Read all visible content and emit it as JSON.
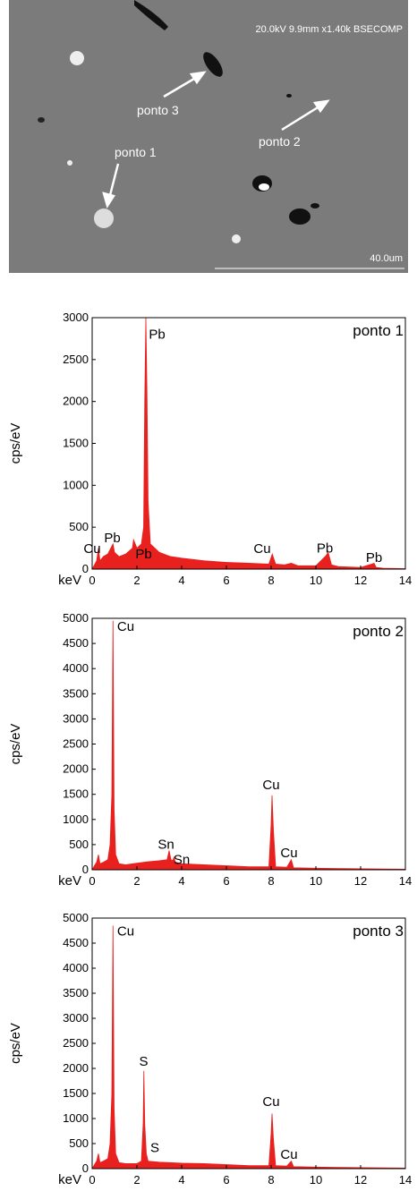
{
  "image": {
    "info": "20.0kV 9.9mm x1.40k BSECOMP",
    "scale_label": "40.0um",
    "labels": [
      "ponto 3",
      "ponto 2",
      "ponto 1"
    ]
  },
  "chart_data": [
    {
      "type": "area",
      "title": "ponto 1",
      "x_label": "keV",
      "y_label": "cps/eV",
      "color": "#e8201e",
      "x": [
        0,
        0.1,
        0.2,
        0.28,
        0.35,
        0.5,
        0.7,
        0.93,
        1.0,
        1.2,
        1.5,
        1.8,
        1.85,
        2.0,
        2.2,
        2.3,
        2.35,
        2.4,
        2.45,
        2.5,
        2.6,
        2.8,
        3.0,
        3.5,
        4,
        5,
        6,
        7,
        7.9,
        8.05,
        8.2,
        8.6,
        8.9,
        9.2,
        10,
        10.45,
        10.55,
        10.7,
        11,
        12,
        12.5,
        12.6,
        12.7,
        13,
        14
      ],
      "values": [
        0,
        50,
        100,
        250,
        100,
        150,
        180,
        300,
        200,
        150,
        180,
        250,
        350,
        250,
        300,
        500,
        2000,
        3000,
        2100,
        800,
        300,
        250,
        200,
        150,
        130,
        100,
        80,
        70,
        60,
        180,
        60,
        50,
        70,
        40,
        40,
        160,
        200,
        50,
        30,
        20,
        60,
        70,
        20,
        10,
        5
      ],
      "xlim": [
        0,
        14
      ],
      "xticks": [
        0,
        2,
        4,
        6,
        8,
        10,
        12,
        14
      ],
      "ylim": [
        0,
        3000
      ],
      "yticks": [
        0,
        500,
        1000,
        1500,
        2000,
        2500,
        3000
      ],
      "annotations": [
        {
          "text": "Cu",
          "x": 0,
          "y": 190
        },
        {
          "text": "Pb",
          "x": 0.9,
          "y": 320
        },
        {
          "text": "Pb",
          "x": 2.9,
          "y": 2750
        },
        {
          "text": "Pb",
          "x": 2.3,
          "y": 130
        },
        {
          "text": "Cu",
          "x": 7.6,
          "y": 190
        },
        {
          "text": "Pb",
          "x": 10.4,
          "y": 200
        },
        {
          "text": "Pb",
          "x": 12.6,
          "y": 85
        }
      ]
    },
    {
      "type": "area",
      "title": "ponto 2",
      "x_label": "keV",
      "y_label": "cps/eV",
      "color": "#e8201e",
      "x": [
        0,
        0.1,
        0.2,
        0.28,
        0.35,
        0.5,
        0.7,
        0.8,
        0.88,
        0.93,
        0.98,
        1.05,
        1.2,
        1.5,
        2,
        2.5,
        3,
        3.35,
        3.44,
        3.52,
        3.6,
        3.66,
        3.72,
        4,
        5,
        6,
        7,
        7.9,
        8.0,
        8.04,
        8.1,
        8.2,
        8.7,
        8.9,
        9.0,
        10,
        11,
        12,
        13,
        14
      ],
      "values": [
        0,
        80,
        150,
        300,
        120,
        150,
        200,
        500,
        1500,
        4950,
        1200,
        300,
        120,
        100,
        130,
        160,
        180,
        200,
        380,
        200,
        180,
        250,
        150,
        120,
        100,
        80,
        60,
        60,
        900,
        1480,
        800,
        60,
        50,
        200,
        40,
        30,
        25,
        20,
        15,
        10
      ],
      "xlim": [
        0,
        14
      ],
      "xticks": [
        0,
        2,
        4,
        6,
        8,
        10,
        12,
        14
      ],
      "ylim": [
        0,
        5000
      ],
      "yticks": [
        0,
        500,
        1000,
        1500,
        2000,
        2500,
        3000,
        3500,
        4000,
        4500,
        5000
      ],
      "annotations": [
        {
          "text": "Cu",
          "x": 1.5,
          "y": 4750
        },
        {
          "text": "Sn",
          "x": 3.3,
          "y": 420
        },
        {
          "text": "Sn",
          "x": 4.0,
          "y": 120
        },
        {
          "text": "Cu",
          "x": 8.0,
          "y": 1600
        },
        {
          "text": "Cu",
          "x": 8.8,
          "y": 250
        }
      ]
    },
    {
      "type": "area",
      "title": "ponto 3",
      "x_label": "keV",
      "y_label": "cps/eV",
      "color": "#e8201e",
      "x": [
        0,
        0.1,
        0.2,
        0.28,
        0.35,
        0.5,
        0.7,
        0.8,
        0.88,
        0.93,
        0.98,
        1.05,
        1.2,
        1.5,
        2,
        2.2,
        2.28,
        2.31,
        2.35,
        2.42,
        2.5,
        3,
        4,
        5,
        6,
        7,
        7.9,
        8.0,
        8.04,
        8.1,
        8.2,
        8.7,
        8.9,
        9.0,
        10,
        11,
        12,
        13,
        14
      ],
      "values": [
        0,
        80,
        150,
        300,
        120,
        150,
        200,
        500,
        1500,
        4850,
        1200,
        300,
        120,
        100,
        100,
        150,
        900,
        1950,
        900,
        300,
        150,
        130,
        110,
        100,
        80,
        60,
        60,
        700,
        1100,
        600,
        60,
        50,
        150,
        40,
        30,
        25,
        20,
        15,
        10
      ],
      "xlim": [
        0,
        14
      ],
      "xticks": [
        0,
        2,
        4,
        6,
        8,
        10,
        12,
        14
      ],
      "ylim": [
        0,
        5000
      ],
      "yticks": [
        0,
        500,
        1000,
        1500,
        2000,
        2500,
        3000,
        3500,
        4000,
        4500,
        5000
      ],
      "annotations": [
        {
          "text": "Cu",
          "x": 1.5,
          "y": 4650
        },
        {
          "text": "S",
          "x": 2.3,
          "y": 2050
        },
        {
          "text": "S",
          "x": 2.8,
          "y": 330
        },
        {
          "text": "Cu",
          "x": 8.0,
          "y": 1250
        },
        {
          "text": "Cu",
          "x": 8.8,
          "y": 200
        }
      ]
    }
  ]
}
